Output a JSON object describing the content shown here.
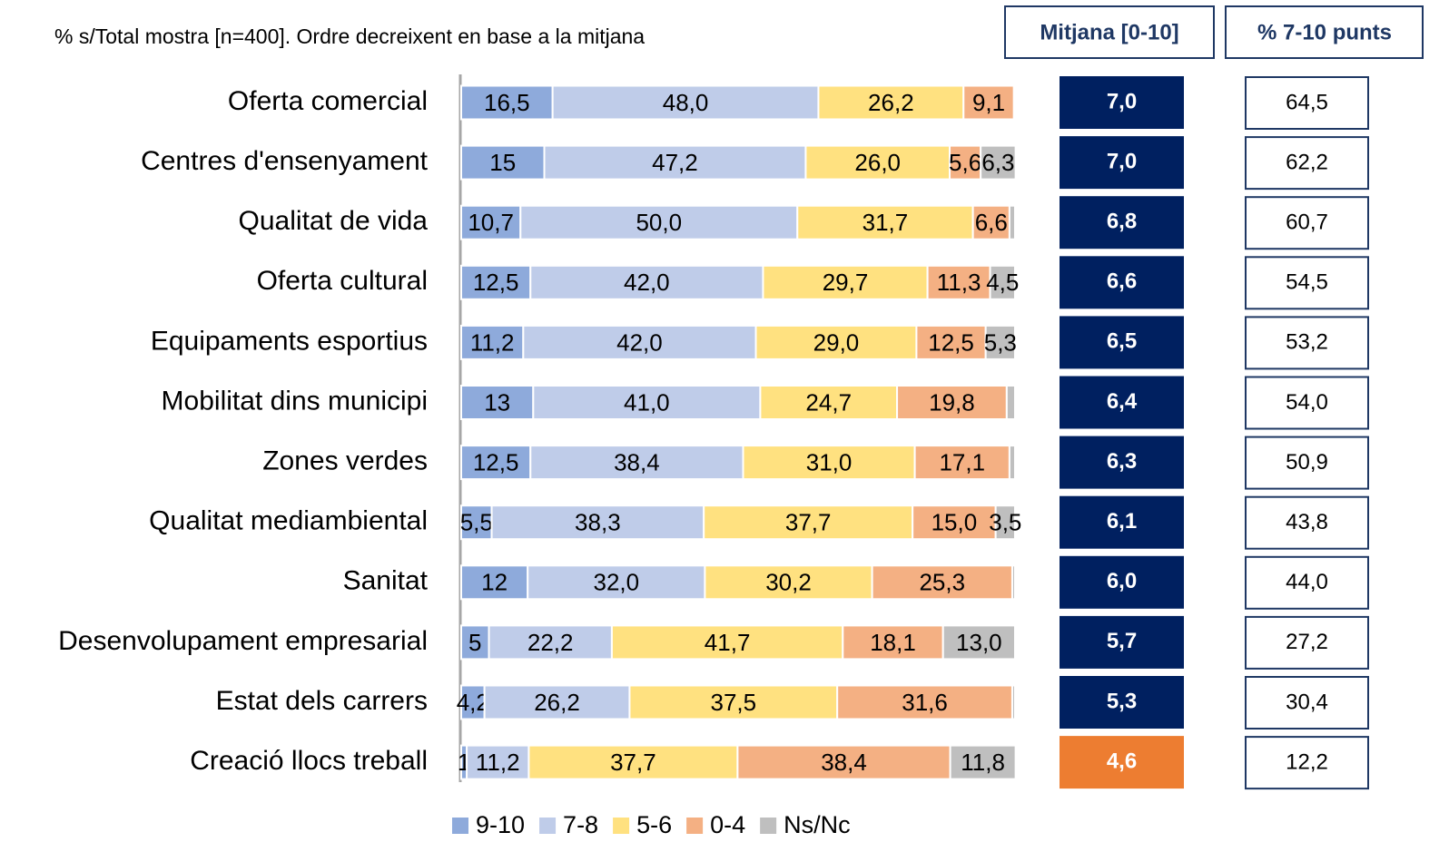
{
  "chart_data": {
    "type": "stacked-bar-horizontal",
    "subtitle": "% s/Total mostra [n=400]. Ordre decreixent en base a la mitjana",
    "categories": [
      "Oferta comercial",
      "Centres d'ensenyament",
      "Qualitat de vida",
      "Oferta cultural",
      "Equipaments esportius",
      "Mobilitat dins municipi",
      "Zones verdes",
      "Qualitat mediambiental",
      "Sanitat",
      "Desenvolupament empresarial",
      "Estat dels carrers",
      "Creació llocs treball"
    ],
    "xlim": [
      0,
      100
    ],
    "series": [
      {
        "name": "9-10",
        "color": "#8eaadb",
        "values": [
          16.5,
          15,
          10.7,
          12.5,
          11.2,
          13,
          12.5,
          5.5,
          12,
          5,
          4.2,
          1
        ],
        "value_labels": [
          "16,5",
          "15",
          "10,7",
          "12,5",
          "11,2",
          "13",
          "12,5",
          "5,5",
          "12",
          "5",
          "4,2",
          "1"
        ]
      },
      {
        "name": "7-8",
        "color": "#bfcce9",
        "values": [
          48.0,
          47.2,
          50.0,
          42.0,
          42.0,
          41.0,
          38.4,
          38.3,
          32.0,
          22.2,
          26.2,
          11.2
        ],
        "value_labels": [
          "48,0",
          "47,2",
          "50,0",
          "42,0",
          "42,0",
          "41,0",
          "38,4",
          "38,3",
          "32,0",
          "22,2",
          "26,2",
          "11,2"
        ]
      },
      {
        "name": "5-6",
        "color": "#ffe180",
        "values": [
          26.2,
          26.0,
          31.7,
          29.7,
          29.0,
          24.7,
          31.0,
          37.7,
          30.2,
          41.7,
          37.5,
          37.7
        ],
        "value_labels": [
          "26,2",
          "26,0",
          "31,7",
          "29,7",
          "29,0",
          "24,7",
          "31,0",
          "37,7",
          "30,2",
          "41,7",
          "37,5",
          "37,7"
        ]
      },
      {
        "name": "0-4",
        "color": "#f4b083",
        "values": [
          9.1,
          5.6,
          6.6,
          11.3,
          12.5,
          19.8,
          17.1,
          15.0,
          25.3,
          18.1,
          31.6,
          38.4
        ],
        "value_labels": [
          "9,1",
          "5,6",
          "6,6",
          "11,3",
          "12,5",
          "19,8",
          "17,1",
          "15,0",
          "25,3",
          "18,1",
          "31,6",
          "38,4"
        ]
      },
      {
        "name": "Ns/Nc",
        "color": "#bfbfbf",
        "values": [
          0.2,
          6.3,
          1.0,
          4.5,
          5.3,
          1.5,
          1.0,
          3.5,
          0.5,
          13.0,
          0.5,
          11.8
        ],
        "value_labels": [
          null,
          "6,3",
          null,
          "4,5",
          "5,3",
          null,
          null,
          "3,5",
          null,
          "13,0",
          null,
          "11,8"
        ]
      }
    ],
    "mitjana": {
      "header": "Mitjana [0-10]",
      "values": [
        7.0,
        7.0,
        6.8,
        6.6,
        6.5,
        6.4,
        6.3,
        6.1,
        6.0,
        5.7,
        5.3,
        4.6
      ],
      "value_labels": [
        "7,0",
        "7,0",
        "6,8",
        "6,6",
        "6,5",
        "6,4",
        "6,3",
        "6,1",
        "6,0",
        "5,7",
        "5,3",
        "4,6"
      ],
      "colors": [
        "#002060",
        "#002060",
        "#002060",
        "#002060",
        "#002060",
        "#002060",
        "#002060",
        "#002060",
        "#002060",
        "#002060",
        "#002060",
        "#ed7d31"
      ]
    },
    "punts_7_10": {
      "header": "% 7-10 punts",
      "values": [
        64.5,
        62.2,
        60.7,
        54.5,
        53.2,
        54.0,
        50.9,
        43.8,
        44.0,
        27.2,
        30.4,
        12.2
      ],
      "value_labels": [
        "64,5",
        "62,2",
        "60,7",
        "54,5",
        "53,2",
        "54,0",
        "50,9",
        "43,8",
        "44,0",
        "27,2",
        "30,4",
        "12,2"
      ]
    }
  }
}
